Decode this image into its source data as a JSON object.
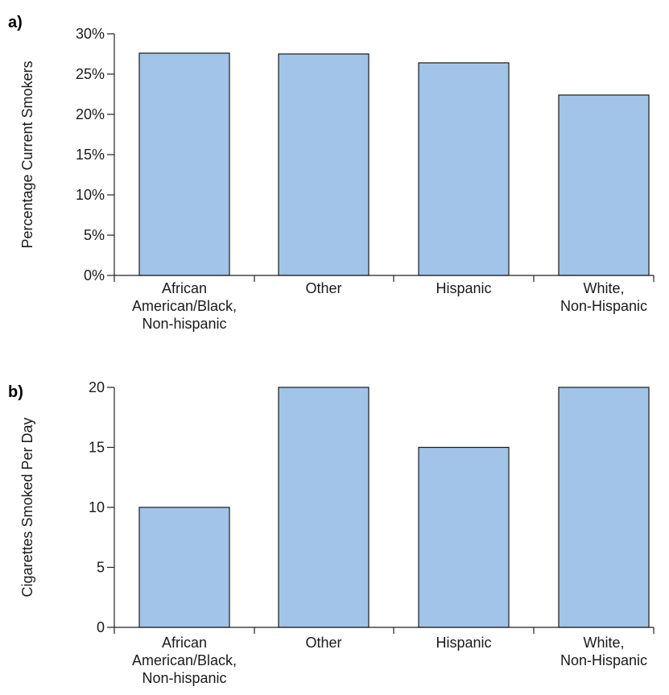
{
  "figure": {
    "bar_color": "#a2c4e8",
    "edge_color": "#1a1a1a"
  },
  "chart_data": [
    {
      "panel_label": "a)",
      "type": "bar",
      "categories": [
        [
          "African",
          "American/Black,",
          "Non-hispanic"
        ],
        [
          "Other"
        ],
        [
          "Hispanic"
        ],
        [
          "White,",
          "Non-Hispanic"
        ]
      ],
      "values": [
        27.6,
        27.5,
        26.4,
        22.4
      ],
      "ylabel": "Percentage Current Smokers",
      "xlabel": "",
      "ylim": [
        0,
        30
      ],
      "yticks": [
        0,
        5,
        10,
        15,
        20,
        25,
        30
      ],
      "ytick_labels": [
        "0%",
        "5%",
        "10%",
        "15%",
        "20%",
        "25%",
        "30%"
      ],
      "grid": false
    },
    {
      "panel_label": "b)",
      "type": "bar",
      "categories": [
        [
          "African",
          "American/Black,",
          "Non-hispanic"
        ],
        [
          "Other"
        ],
        [
          "Hispanic"
        ],
        [
          "White,",
          "Non-Hispanic"
        ]
      ],
      "values": [
        10,
        20,
        15,
        20
      ],
      "ylabel": "Cigarettes Smoked Per Day",
      "xlabel": "",
      "ylim": [
        0,
        20
      ],
      "yticks": [
        0,
        5,
        10,
        15,
        20
      ],
      "ytick_labels": [
        "0",
        "5",
        "10",
        "15",
        "20"
      ],
      "grid": false
    }
  ]
}
